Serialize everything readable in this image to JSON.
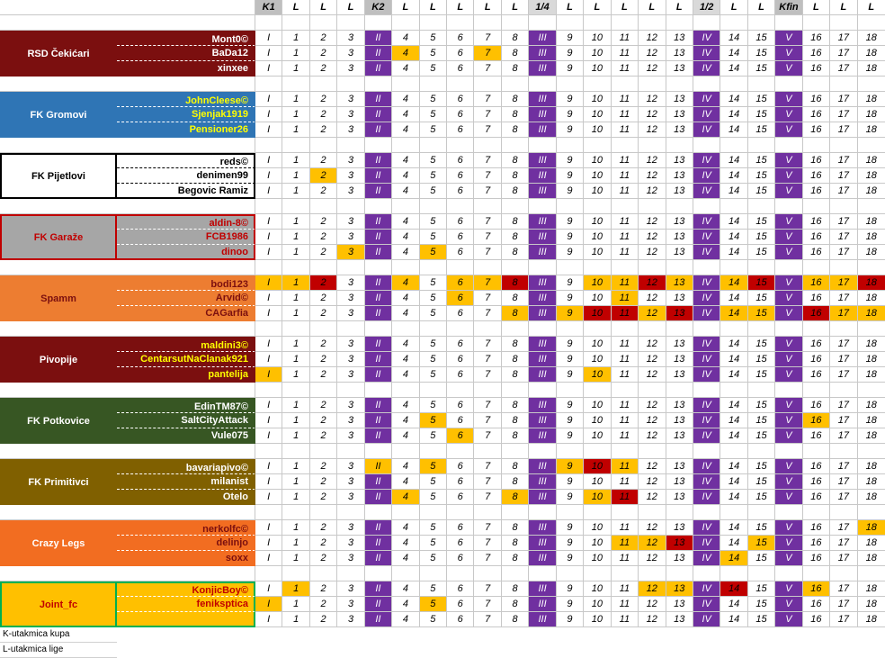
{
  "columns": [
    "K1",
    "L",
    "L",
    "L",
    "K2",
    "L",
    "L",
    "L",
    "L",
    "L",
    "1/4",
    "L",
    "L",
    "L",
    "L",
    "L",
    "1/2",
    "L",
    "L",
    "Kfin",
    "L",
    "L",
    "L"
  ],
  "legend": [
    "K-utakmica kupa",
    "L-utakmica lige"
  ],
  "teams": [
    {
      "name": "RSD  Čekićari",
      "bg": "#7b0f0f",
      "fg": "#ffffff",
      "pbg": "#7b0f0f",
      "pfg": "#ffffff",
      "border": "#7b0f0f",
      "players": [
        {
          "name": "Mont0©",
          "cells": [
            "I",
            "1",
            "2",
            "3",
            "II",
            "4",
            "5",
            "6",
            "7",
            "8",
            "III",
            "9",
            "10",
            "11",
            "12",
            "13",
            "IV",
            "14",
            "15",
            "V",
            "16",
            "17",
            "18"
          ],
          "hl": {}
        },
        {
          "name": "BaDa12",
          "cells": [
            "I",
            "1",
            "2",
            "3",
            "II",
            "4",
            "5",
            "6",
            "7",
            "8",
            "III",
            "9",
            "10",
            "11",
            "12",
            "13",
            "IV",
            "14",
            "15",
            "V",
            "16",
            "17",
            "18"
          ],
          "hl": {
            "5": "o",
            "8": "o"
          }
        },
        {
          "name": "xinxee",
          "cells": [
            "I",
            "1",
            "2",
            "3",
            "II",
            "4",
            "5",
            "6",
            "7",
            "8",
            "III",
            "9",
            "10",
            "11",
            "12",
            "13",
            "IV",
            "14",
            "15",
            "V",
            "16",
            "17",
            "18"
          ],
          "hl": {}
        }
      ]
    },
    {
      "name": "FK Gromovi",
      "bg": "#2f75b5",
      "fg": "#ffffff",
      "pbg": "#2f75b5",
      "pfg": "#ffff00",
      "border": "#2f75b5",
      "players": [
        {
          "name": "JohnCleese©",
          "cells": [
            "I",
            "1",
            "2",
            "3",
            "II",
            "4",
            "5",
            "6",
            "7",
            "8",
            "III",
            "9",
            "10",
            "11",
            "12",
            "13",
            "IV",
            "14",
            "15",
            "V",
            "16",
            "17",
            "18"
          ],
          "hl": {}
        },
        {
          "name": "Sjenjak1919",
          "cells": [
            "I",
            "1",
            "2",
            "3",
            "II",
            "4",
            "5",
            "6",
            "7",
            "8",
            "III",
            "9",
            "10",
            "11",
            "12",
            "13",
            "IV",
            "14",
            "15",
            "V",
            "16",
            "17",
            "18"
          ],
          "hl": {}
        },
        {
          "name": "Pensioner26",
          "cells": [
            "I",
            "1",
            "2",
            "3",
            "II",
            "4",
            "5",
            "6",
            "7",
            "8",
            "III",
            "9",
            "10",
            "11",
            "12",
            "13",
            "IV",
            "14",
            "15",
            "V",
            "16",
            "17",
            "18"
          ],
          "hl": {}
        }
      ]
    },
    {
      "name": "FK Pijetlovi",
      "bg": "#ffffff",
      "fg": "#000000",
      "pbg": "#ffffff",
      "pfg": "#000000",
      "border": "#000000",
      "players": [
        {
          "name": "reds©",
          "cells": [
            "I",
            "1",
            "2",
            "3",
            "II",
            "4",
            "5",
            "6",
            "7",
            "8",
            "III",
            "9",
            "10",
            "11",
            "12",
            "13",
            "IV",
            "14",
            "15",
            "V",
            "16",
            "17",
            "18"
          ],
          "hl": {}
        },
        {
          "name": "denimen99",
          "cells": [
            "I",
            "1",
            "2",
            "3",
            "II",
            "4",
            "5",
            "6",
            "7",
            "8",
            "III",
            "9",
            "10",
            "11",
            "12",
            "13",
            "IV",
            "14",
            "15",
            "V",
            "16",
            "17",
            "18"
          ],
          "hl": {
            "2": "o"
          }
        },
        {
          "name": "Begovic Ramiz",
          "cells": [
            "I",
            "1",
            "2",
            "3",
            "II",
            "4",
            "5",
            "6",
            "7",
            "8",
            "III",
            "9",
            "10",
            "11",
            "12",
            "13",
            "IV",
            "14",
            "15",
            "V",
            "16",
            "17",
            "18"
          ],
          "hl": {}
        }
      ]
    },
    {
      "name": "FK Garaže",
      "bg": "#a6a6a6",
      "fg": "#c00000",
      "pbg": "#a6a6a6",
      "pfg": "#c00000",
      "border": "#c00000",
      "players": [
        {
          "name": "aldin-8©",
          "cells": [
            "I",
            "1",
            "2",
            "3",
            "II",
            "4",
            "5",
            "6",
            "7",
            "8",
            "III",
            "9",
            "10",
            "11",
            "12",
            "13",
            "IV",
            "14",
            "15",
            "V",
            "16",
            "17",
            "18"
          ],
          "hl": {}
        },
        {
          "name": "FCB1986",
          "cells": [
            "I",
            "1",
            "2",
            "3",
            "II",
            "4",
            "5",
            "6",
            "7",
            "8",
            "III",
            "9",
            "10",
            "11",
            "12",
            "13",
            "IV",
            "14",
            "15",
            "V",
            "16",
            "17",
            "18"
          ],
          "hl": {}
        },
        {
          "name": "dinoo",
          "cells": [
            "I",
            "1",
            "2",
            "3",
            "II",
            "4",
            "5",
            "6",
            "7",
            "8",
            "III",
            "9",
            "10",
            "11",
            "12",
            "13",
            "IV",
            "14",
            "15",
            "V",
            "16",
            "17",
            "18"
          ],
          "hl": {
            "3": "o",
            "6": "o"
          }
        }
      ]
    },
    {
      "name": "Spamm",
      "bg": "#ed7d31",
      "fg": "#7b0f0f",
      "pbg": "#ed7d31",
      "pfg": "#7b0f0f",
      "border": "#ed7d31",
      "players": [
        {
          "name": "bodi123",
          "cells": [
            "I",
            "1",
            "2",
            "3",
            "II",
            "4",
            "5",
            "6",
            "7",
            "8",
            "III",
            "9",
            "10",
            "11",
            "12",
            "13",
            "IV",
            "14",
            "15",
            "V",
            "16",
            "17",
            "18"
          ],
          "hl": {
            "0": "o",
            "1": "o",
            "2": "r",
            "5": "o",
            "7": "o",
            "8": "o",
            "9": "r",
            "12": "o",
            "13": "o",
            "14": "r",
            "15": "o",
            "17": "o",
            "18": "r",
            "20": "o",
            "21": "o",
            "22": "r"
          }
        },
        {
          "name": "Arvid©",
          "cells": [
            "I",
            "1",
            "2",
            "3",
            "II",
            "4",
            "5",
            "6",
            "7",
            "8",
            "III",
            "9",
            "10",
            "11",
            "12",
            "13",
            "IV",
            "14",
            "15",
            "V",
            "16",
            "17",
            "18"
          ],
          "hl": {
            "7": "o",
            "13": "o"
          }
        },
        {
          "name": "CAGarfia",
          "cells": [
            "I",
            "1",
            "2",
            "3",
            "II",
            "4",
            "5",
            "6",
            "7",
            "8",
            "III",
            "9",
            "10",
            "11",
            "12",
            "13",
            "IV",
            "14",
            "15",
            "V",
            "16",
            "17",
            "18"
          ],
          "hl": {
            "9": "o",
            "11": "o",
            "12": "r",
            "13": "r",
            "14": "o",
            "15": "r",
            "17": "o",
            "18": "o",
            "20": "r",
            "21": "o",
            "22": "o"
          }
        }
      ]
    },
    {
      "name": "Pivopije",
      "bg": "#7b0f0f",
      "fg": "#ffffff",
      "pbg": "#7b0f0f",
      "pfg": "#ffff00",
      "border": "#7b0f0f",
      "players": [
        {
          "name": "maldini3©",
          "cells": [
            "I",
            "1",
            "2",
            "3",
            "II",
            "4",
            "5",
            "6",
            "7",
            "8",
            "III",
            "9",
            "10",
            "11",
            "12",
            "13",
            "IV",
            "14",
            "15",
            "V",
            "16",
            "17",
            "18"
          ],
          "hl": {}
        },
        {
          "name": "CentarsutNaClanak921",
          "cells": [
            "I",
            "1",
            "2",
            "3",
            "II",
            "4",
            "5",
            "6",
            "7",
            "8",
            "III",
            "9",
            "10",
            "11",
            "12",
            "13",
            "IV",
            "14",
            "15",
            "V",
            "16",
            "17",
            "18"
          ],
          "hl": {}
        },
        {
          "name": "pantelija",
          "cells": [
            "I",
            "1",
            "2",
            "3",
            "II",
            "4",
            "5",
            "6",
            "7",
            "8",
            "III",
            "9",
            "10",
            "11",
            "12",
            "13",
            "IV",
            "14",
            "15",
            "V",
            "16",
            "17",
            "18"
          ],
          "hl": {
            "0": "o",
            "12": "o"
          }
        }
      ]
    },
    {
      "name": "FK Potkovice",
      "bg": "#375623",
      "fg": "#ffffff",
      "pbg": "#375623",
      "pfg": "#ffffff",
      "border": "#375623",
      "players": [
        {
          "name": "EdinTM87©",
          "cells": [
            "I",
            "1",
            "2",
            "3",
            "II",
            "4",
            "5",
            "6",
            "7",
            "8",
            "III",
            "9",
            "10",
            "11",
            "12",
            "13",
            "IV",
            "14",
            "15",
            "V",
            "16",
            "17",
            "18"
          ],
          "hl": {}
        },
        {
          "name": "SaltCityAttack",
          "cells": [
            "I",
            "1",
            "2",
            "3",
            "II",
            "4",
            "5",
            "6",
            "7",
            "8",
            "III",
            "9",
            "10",
            "11",
            "12",
            "13",
            "IV",
            "14",
            "15",
            "V",
            "16",
            "17",
            "18"
          ],
          "hl": {
            "6": "o",
            "20": "o"
          }
        },
        {
          "name": "Vule075",
          "cells": [
            "I",
            "1",
            "2",
            "3",
            "II",
            "4",
            "5",
            "6",
            "7",
            "8",
            "III",
            "9",
            "10",
            "11",
            "12",
            "13",
            "IV",
            "14",
            "15",
            "V",
            "16",
            "17",
            "18"
          ],
          "hl": {
            "7": "o"
          }
        }
      ]
    },
    {
      "name": "FK Primitivci",
      "bg": "#806000",
      "fg": "#ffffff",
      "pbg": "#806000",
      "pfg": "#ffffff",
      "border": "#806000",
      "players": [
        {
          "name": "bavariapivo©",
          "cells": [
            "I",
            "1",
            "2",
            "3",
            "II",
            "4",
            "5",
            "6",
            "7",
            "8",
            "III",
            "9",
            "10",
            "11",
            "12",
            "13",
            "IV",
            "14",
            "15",
            "V",
            "16",
            "17",
            "18"
          ],
          "hl": {
            "4": "o",
            "6": "o",
            "11": "o",
            "12": "r",
            "13": "o"
          }
        },
        {
          "name": "milanist",
          "cells": [
            "I",
            "1",
            "2",
            "3",
            "II",
            "4",
            "5",
            "6",
            "7",
            "8",
            "III",
            "9",
            "10",
            "11",
            "12",
            "13",
            "IV",
            "14",
            "15",
            "V",
            "16",
            "17",
            "18"
          ],
          "hl": {}
        },
        {
          "name": "Otelo",
          "cells": [
            "I",
            "1",
            "2",
            "3",
            "II",
            "4",
            "5",
            "6",
            "7",
            "8",
            "III",
            "9",
            "10",
            "11",
            "12",
            "13",
            "IV",
            "14",
            "15",
            "V",
            "16",
            "17",
            "18"
          ],
          "hl": {
            "5": "o",
            "9": "o",
            "12": "o",
            "13": "r"
          }
        }
      ]
    },
    {
      "name": "Crazy Legs",
      "bg": "#f26d21",
      "fg": "#ffffff",
      "pbg": "#f26d21",
      "pfg": "#7b0f0f",
      "border": "#f26d21",
      "players": [
        {
          "name": "nerkolfc©",
          "cells": [
            "I",
            "1",
            "2",
            "3",
            "II",
            "4",
            "5",
            "6",
            "7",
            "8",
            "III",
            "9",
            "10",
            "11",
            "12",
            "13",
            "IV",
            "14",
            "15",
            "V",
            "16",
            "17",
            "18"
          ],
          "hl": {
            "22": "o"
          }
        },
        {
          "name": "delinjo",
          "cells": [
            "I",
            "1",
            "2",
            "3",
            "II",
            "4",
            "5",
            "6",
            "7",
            "8",
            "III",
            "9",
            "10",
            "11",
            "12",
            "13",
            "IV",
            "14",
            "15",
            "V",
            "16",
            "17",
            "18"
          ],
          "hl": {
            "13": "o",
            "14": "o",
            "15": "r",
            "18": "o"
          }
        },
        {
          "name": "soxx",
          "cells": [
            "I",
            "1",
            "2",
            "3",
            "II",
            "4",
            "5",
            "6",
            "7",
            "8",
            "III",
            "9",
            "10",
            "11",
            "12",
            "13",
            "IV",
            "14",
            "15",
            "V",
            "16",
            "17",
            "18"
          ],
          "hl": {
            "17": "o"
          }
        }
      ]
    },
    {
      "name": "Joint_fc",
      "bg": "#ffc000",
      "fg": "#c00000",
      "pbg": "#ffc000",
      "pfg": "#c00000",
      "border": "#00b050",
      "players": [
        {
          "name": "KonjicBoy©",
          "cells": [
            "I",
            "1",
            "2",
            "3",
            "II",
            "4",
            "5",
            "6",
            "7",
            "8",
            "III",
            "9",
            "10",
            "11",
            "12",
            "13",
            "IV",
            "14",
            "15",
            "V",
            "16",
            "17",
            "18"
          ],
          "hl": {
            "1": "o",
            "14": "o",
            "15": "o",
            "17": "r",
            "20": "o"
          }
        },
        {
          "name": "feniksptica",
          "cells": [
            "I",
            "1",
            "2",
            "3",
            "II",
            "4",
            "5",
            "6",
            "7",
            "8",
            "III",
            "9",
            "10",
            "11",
            "12",
            "13",
            "IV",
            "14",
            "15",
            "V",
            "16",
            "17",
            "18"
          ],
          "hl": {
            "0": "o",
            "6": "o"
          }
        },
        {
          "name": "",
          "cells": [
            "I",
            "1",
            "2",
            "3",
            "II",
            "4",
            "5",
            "6",
            "7",
            "8",
            "III",
            "9",
            "10",
            "11",
            "12",
            "13",
            "IV",
            "14",
            "15",
            "V",
            "16",
            "17",
            "18"
          ],
          "hl": {}
        }
      ]
    }
  ]
}
